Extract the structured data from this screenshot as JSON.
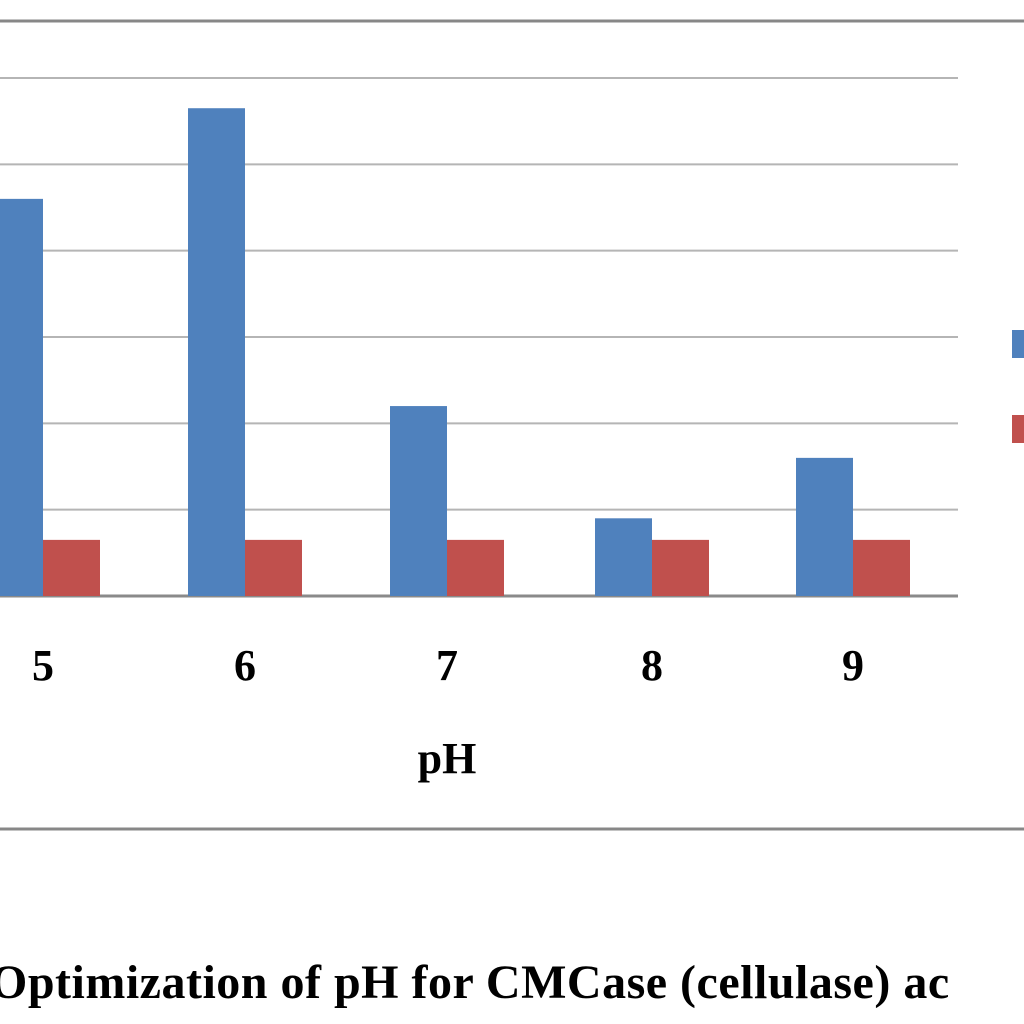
{
  "caption": "Optimization of pH for CMCase (cellulase) ac",
  "chart_data": {
    "type": "bar",
    "title": "",
    "xlabel": "pH",
    "ylabel": "",
    "categories": [
      "5",
      "6",
      "7",
      "8",
      "9"
    ],
    "series": [
      {
        "color": "#4f81bd",
        "values": [
          4.6,
          5.65,
          2.2,
          0.9,
          1.6
        ]
      },
      {
        "color": "#c0504d",
        "values": [
          0.65,
          0.65,
          0.65,
          0.65,
          0.65
        ]
      }
    ],
    "ylim": [
      0,
      6
    ],
    "grid": true,
    "legend_position": "right"
  }
}
